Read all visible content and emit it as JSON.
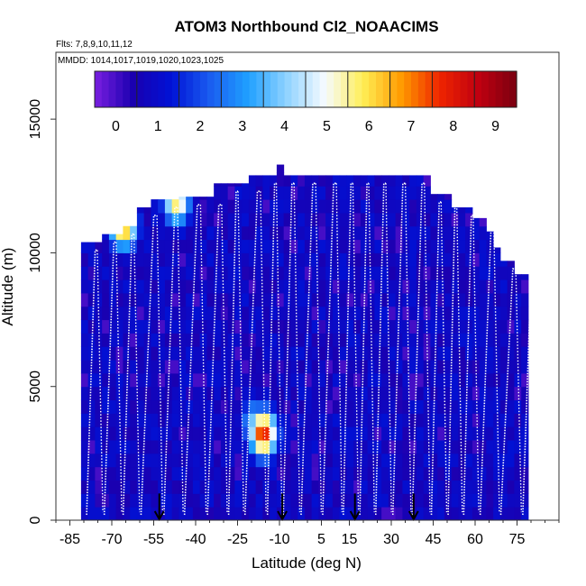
{
  "chart_data": {
    "type": "heatmap",
    "title": "ATOM3 Northbound Cl2_NOAACIMS",
    "subtitle_flights": "Flts: 7,8,9,10,11,12",
    "subtitle_dates": "MMDD: 1014,1017,1019,1020,1023,1025",
    "xlabel": "Latitude (deg N)",
    "ylabel": "Altitude (m)",
    "xlim": [
      -85,
      90
    ],
    "ylim": [
      0,
      17500
    ],
    "x_ticks": [
      "-85",
      "-70",
      "-55",
      "-40",
      "-25",
      "-10",
      "5",
      "15",
      "30",
      "45",
      "60",
      "75"
    ],
    "x_tick_values": [
      -85,
      -70,
      -55,
      -40,
      -25,
      -10,
      5,
      15,
      30,
      45,
      60,
      75
    ],
    "y_ticks": [
      "0",
      "5000",
      "10000",
      "15000"
    ],
    "y_tick_values": [
      0,
      5000,
      10000,
      15000
    ],
    "colorbar": {
      "range": [
        -0.5,
        9.5
      ],
      "ticks": [
        "0",
        "1",
        "2",
        "3",
        "4",
        "5",
        "6",
        "7",
        "8",
        "9"
      ],
      "tick_values": [
        0,
        1,
        2,
        3,
        4,
        5,
        6,
        7,
        8,
        9
      ],
      "colors": [
        "#7a1fe0",
        "#1a00b0",
        "#0012d6",
        "#1a5cf0",
        "#1fa0ff",
        "#8fd2ff",
        "#f6fbff",
        "#ffee55",
        "#ff9a00",
        "#ee2400",
        "#c00010",
        "#7a0010"
      ]
    },
    "arrows_latitude": [
      -53,
      -9,
      17,
      38
    ],
    "hotspots": [
      {
        "lat": -17,
        "alt": 3000,
        "value": 8
      },
      {
        "lat": -20,
        "alt": 3400,
        "value": 4
      },
      {
        "lat": -48,
        "alt": 11700,
        "value": 6
      },
      {
        "lat": -67,
        "alt": 10800,
        "value": 7
      }
    ],
    "background_value": 0.8
  }
}
